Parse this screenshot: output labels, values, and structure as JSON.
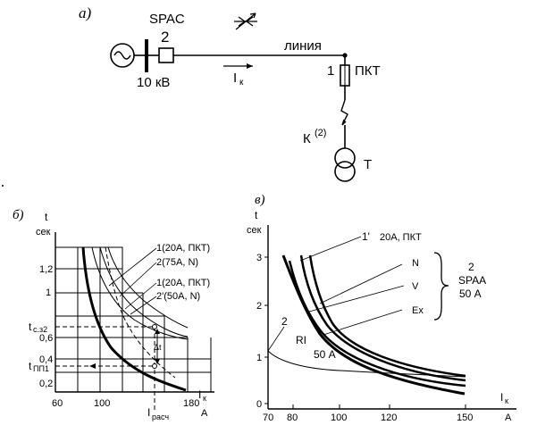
{
  "schematic": {
    "panel_label": "а)",
    "relay_label": "SPAC",
    "relay_number": "2",
    "voltage_label": "10 кВ",
    "line_label": "линия",
    "current_label": "I",
    "current_sub": "к",
    "fuse_number": "1",
    "fuse_label": "ПКТ",
    "fault_label": "К",
    "fault_sup": "(2)",
    "transformer_label": "Т"
  },
  "chart_b": {
    "panel_label": "б)",
    "y_title_1": "t",
    "y_title_2": "сек",
    "x_title_I": "I",
    "x_title_sub": "к",
    "x_unit": "А",
    "y_ticks": [
      "1,2",
      "1",
      "0,6",
      "0,4",
      "0,2"
    ],
    "x_ticks": [
      "60",
      "100",
      "180"
    ],
    "marker_top": "t",
    "marker_top_sub": "с.з2",
    "marker_bottom": "t",
    "marker_bottom_sub": "ПП1",
    "delta_label": "Δt",
    "x_marker": "I",
    "x_marker_sub": "расч",
    "legend": [
      "1(20А,  ПКТ)",
      "2(75А,  N)",
      "1(20А,  ПКТ)",
      "2'(50А,  N)"
    ]
  },
  "chart_v": {
    "panel_label": "в)",
    "y_title_1": "t",
    "y_title_2": "сек",
    "x_title_I": "I",
    "x_title_sub": "к",
    "x_unit": "А",
    "y_ticks": [
      "3",
      "2",
      "1",
      "0"
    ],
    "x_ticks": [
      "70",
      "80",
      "100",
      "120",
      "150"
    ],
    "curve1_label": "1'",
    "curve1_desc": "20А,  ПКТ",
    "curve_N": "N",
    "curve_V": "V",
    "curve_Ex": "Ex",
    "group_num": "2",
    "group_name": "SPAA",
    "group_rating": "50 А",
    "curve2_label": "2",
    "ri_label": "RI",
    "ri_rating": "50 А"
  },
  "chart_data": [
    {
      "type": "line",
      "panel": "б",
      "ylim": [
        0,
        1.4
      ],
      "xlim": [
        60,
        180
      ],
      "y_ticks": [
        0.2,
        0.4,
        0.6,
        1.0,
        1.2
      ],
      "x_ticks": [
        60,
        100,
        180
      ],
      "series": [
        {
          "name": "1(20А,  ПКТ)",
          "x": [
            80,
            90,
            100,
            120,
            150,
            180
          ],
          "y": [
            1.28,
            0.8,
            0.55,
            0.32,
            0.18,
            0.1
          ]
        },
        {
          "name": "2(75А,  N)",
          "x": [
            100,
            120,
            150,
            180
          ],
          "y": [
            1.28,
            0.9,
            0.62,
            0.45
          ]
        },
        {
          "name": "2'(50А,  N)",
          "x": [
            88,
            100,
            120,
            150,
            180
          ],
          "y": [
            1.28,
            1.0,
            0.78,
            0.58,
            0.47
          ]
        }
      ]
    },
    {
      "type": "line",
      "panel": "в",
      "ylim": [
        0,
        3.4
      ],
      "xlim": [
        70,
        155
      ],
      "y_ticks": [
        0,
        1,
        2,
        3
      ],
      "x_ticks": [
        70,
        80,
        100,
        120,
        150
      ],
      "series": [
        {
          "name": "1'",
          "x": [
            82,
            90,
            100,
            120,
            150
          ],
          "y": [
            2.95,
            2.0,
            1.2,
            0.6,
            0.3
          ]
        },
        {
          "name": "N",
          "x": [
            86,
            95,
            100,
            120,
            150
          ],
          "y": [
            2.9,
            1.8,
            1.4,
            0.85,
            0.6
          ]
        },
        {
          "name": "V",
          "x": [
            84,
            95,
            100,
            120,
            150
          ],
          "y": [
            2.9,
            1.7,
            1.3,
            0.8,
            0.55
          ]
        },
        {
          "name": "Ex",
          "x": [
            81,
            90,
            100,
            120,
            150
          ],
          "y": [
            2.8,
            1.7,
            1.05,
            0.65,
            0.5
          ]
        },
        {
          "name": "RI",
          "x": [
            70,
            80,
            100,
            120,
            150
          ],
          "y": [
            1.1,
            0.85,
            0.7,
            0.6,
            0.55
          ]
        }
      ]
    }
  ]
}
